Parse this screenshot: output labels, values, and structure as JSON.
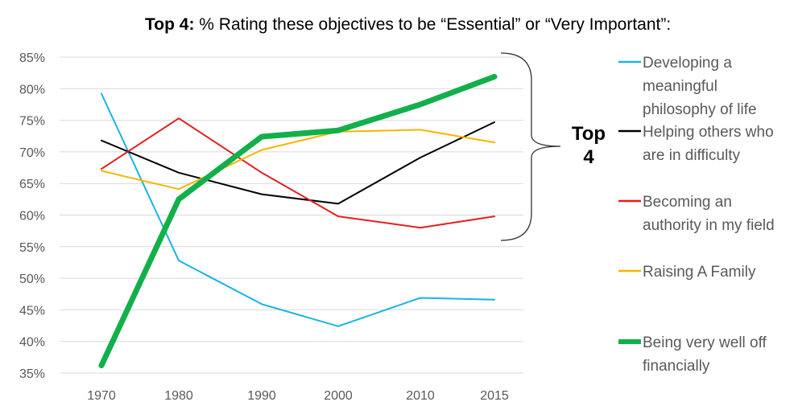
{
  "chart_data": {
    "type": "line",
    "title_bold": "Top 4:",
    "title_rest": " % Rating these objectives to be “Essential” or “Very Important”:",
    "x": [
      "1970",
      "1980",
      "1990",
      "2000",
      "2010",
      "2015"
    ],
    "ylim": [
      35,
      85
    ],
    "yticks": [
      "35%",
      "40%",
      "45%",
      "50%",
      "55%",
      "60%",
      "65%",
      "70%",
      "75%",
      "80%",
      "85%"
    ],
    "grid": true,
    "legend_position": "right",
    "series": [
      {
        "name_lines": [
          "Developing a",
          "meaningful",
          "philosophy of life"
        ],
        "color": "#1ab3e6",
        "width": 2,
        "values": [
          79.2,
          52.8,
          45.9,
          42.4,
          46.9,
          46.6
        ]
      },
      {
        "name_lines": [
          "Helping others who",
          "are in difficulty"
        ],
        "color": "#000000",
        "width": 2,
        "values": [
          71.8,
          66.7,
          63.3,
          61.8,
          69.1,
          74.7
        ]
      },
      {
        "name_lines": [
          "Becoming an",
          "authority in my field"
        ],
        "color": "#e41e1e",
        "width": 2,
        "values": [
          67.3,
          75.3,
          66.7,
          59.8,
          58.0,
          59.8
        ]
      },
      {
        "name_lines": [
          "Raising A Family"
        ],
        "color": "#f7b500",
        "width": 2,
        "values": [
          67.0,
          64.1,
          70.3,
          73.2,
          73.5,
          71.5
        ]
      },
      {
        "name_lines": [
          "Being very well off",
          "financially"
        ],
        "color": "#12b04a",
        "width": 7,
        "values": [
          36.2,
          62.5,
          72.4,
          73.4,
          77.5,
          81.9
        ]
      }
    ],
    "annotation_lines": [
      "Top",
      "4"
    ]
  }
}
